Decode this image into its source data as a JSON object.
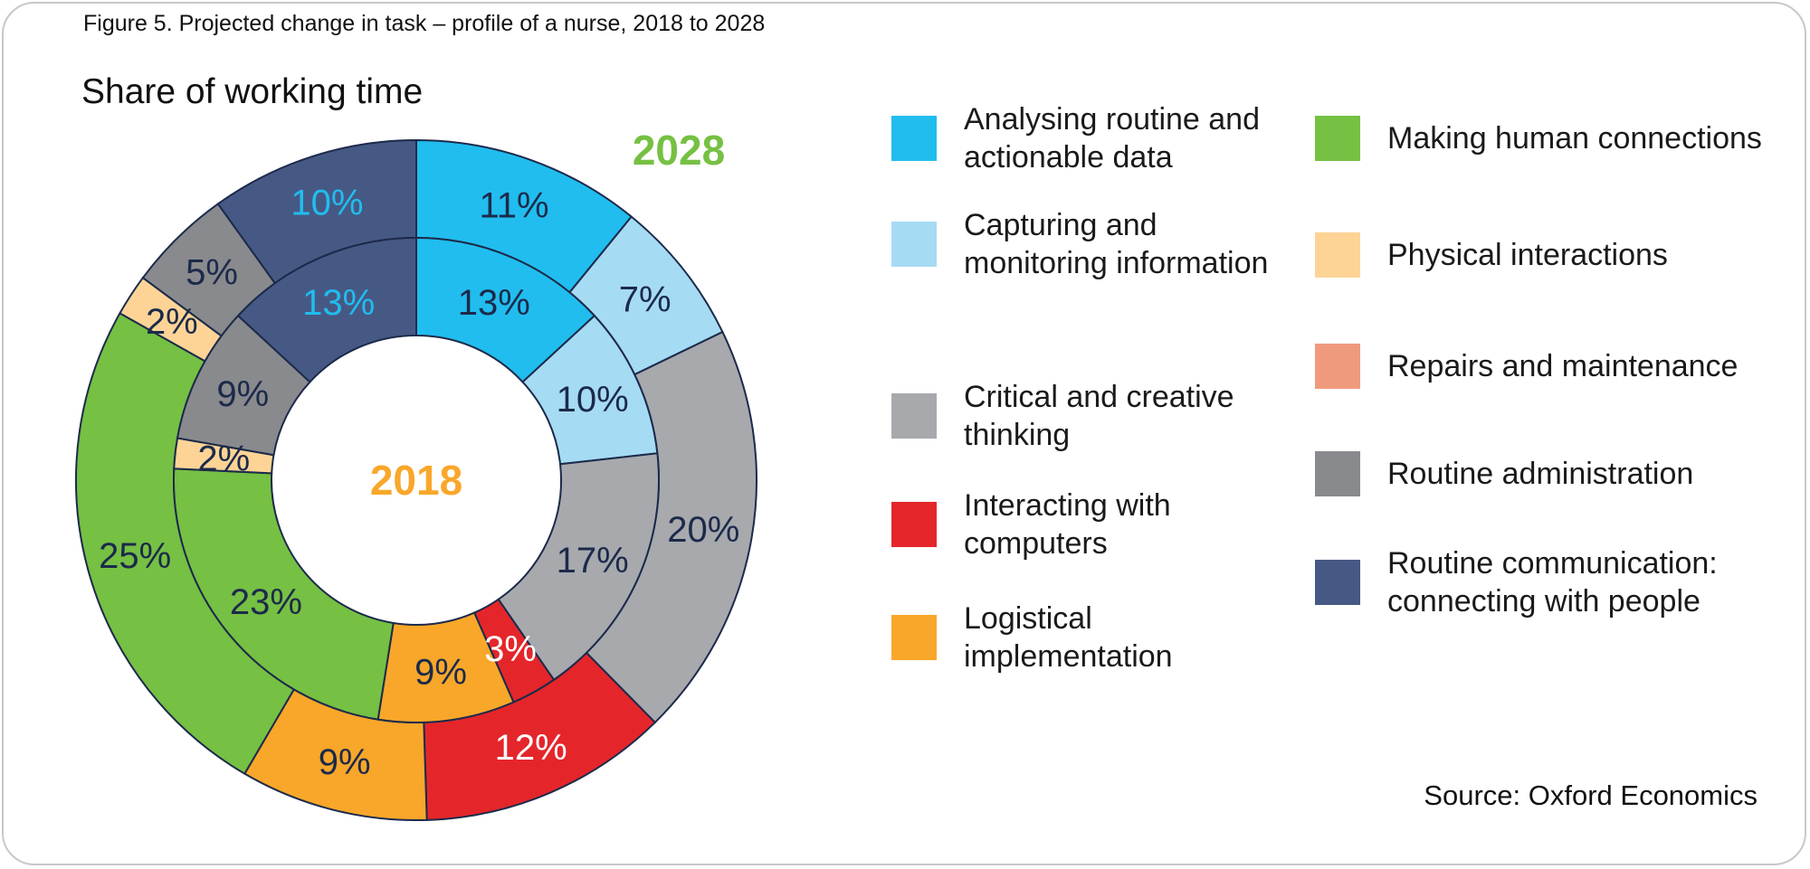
{
  "figure_caption": "Figure 5. Projected change in task – profile of a nurse, 2018 to 2028",
  "source": "Source: Oxford Economics",
  "chart_data": {
    "type": "donut",
    "title": "Share of working time",
    "categories": [
      "Analysing routine and actionable data",
      "Capturing and monitoring information",
      "Critical and creative thinking",
      "Interacting with computers",
      "Logistical implementation",
      "Making human connections",
      "Physical interactions",
      "Repairs and maintenance",
      "Routine administration",
      "Routine communication: connecting with people"
    ],
    "colors": [
      "#21bdef",
      "#a6dbf4",
      "#a7a9ad",
      "#e4262b",
      "#f9a72a",
      "#76c043",
      "#fdd496",
      "#f09a7d",
      "#898a8d",
      "#465985"
    ],
    "series": [
      {
        "name": "2018",
        "name_color": "#f9a72a",
        "values": [
          13,
          10,
          17,
          3,
          9,
          23,
          2,
          0,
          9,
          13
        ],
        "labels": [
          "13%",
          "10%",
          "17%",
          "3%",
          "9%",
          "23%",
          "2%",
          "",
          "9%",
          "13%"
        ],
        "label_colors": [
          "#1c2a4a",
          "#1c2a4a",
          "#1c2a4a",
          "#ffffff",
          "#1c2a4a",
          "#1c2a4a",
          "#1c2a4a",
          "#1c2a4a",
          "#1c2a4a",
          "#21bdef"
        ]
      },
      {
        "name": "2028",
        "name_color": "#76c043",
        "values": [
          11,
          7,
          20,
          12,
          9,
          25,
          2,
          0,
          5,
          10
        ],
        "labels": [
          "11%",
          "7%",
          "20%",
          "12%",
          "9%",
          "25%",
          "2%",
          "",
          "5%",
          "10%"
        ],
        "label_colors": [
          "#1c2a4a",
          "#1c2a4a",
          "#1c2a4a",
          "#ffffff",
          "#1c2a4a",
          "#1c2a4a",
          "#1c2a4a",
          "#1c2a4a",
          "#1c2a4a",
          "#21bdef"
        ]
      }
    ],
    "legend": {
      "placement": "right",
      "items": [
        {
          "label": "Analysing routine and actionable data",
          "color": "#21bdef"
        },
        {
          "label": "Capturing and monitoring information",
          "color": "#a6dbf4"
        },
        {
          "label": "Critical and creative thinking",
          "color": "#a7a9ad"
        },
        {
          "label": "Interacting with computers",
          "color": "#e4262b"
        },
        {
          "label": "Logistical implementation",
          "color": "#f9a72a"
        },
        {
          "label": "Making human connections",
          "color": "#76c043"
        },
        {
          "label": "Physical interactions",
          "color": "#fdd496"
        },
        {
          "label": "Repairs and maintenance",
          "color": "#f09a7d"
        },
        {
          "label": "Routine administration",
          "color": "#898a8d"
        },
        {
          "label": "Routine communication: connecting with people",
          "color": "#465985"
        }
      ]
    }
  }
}
